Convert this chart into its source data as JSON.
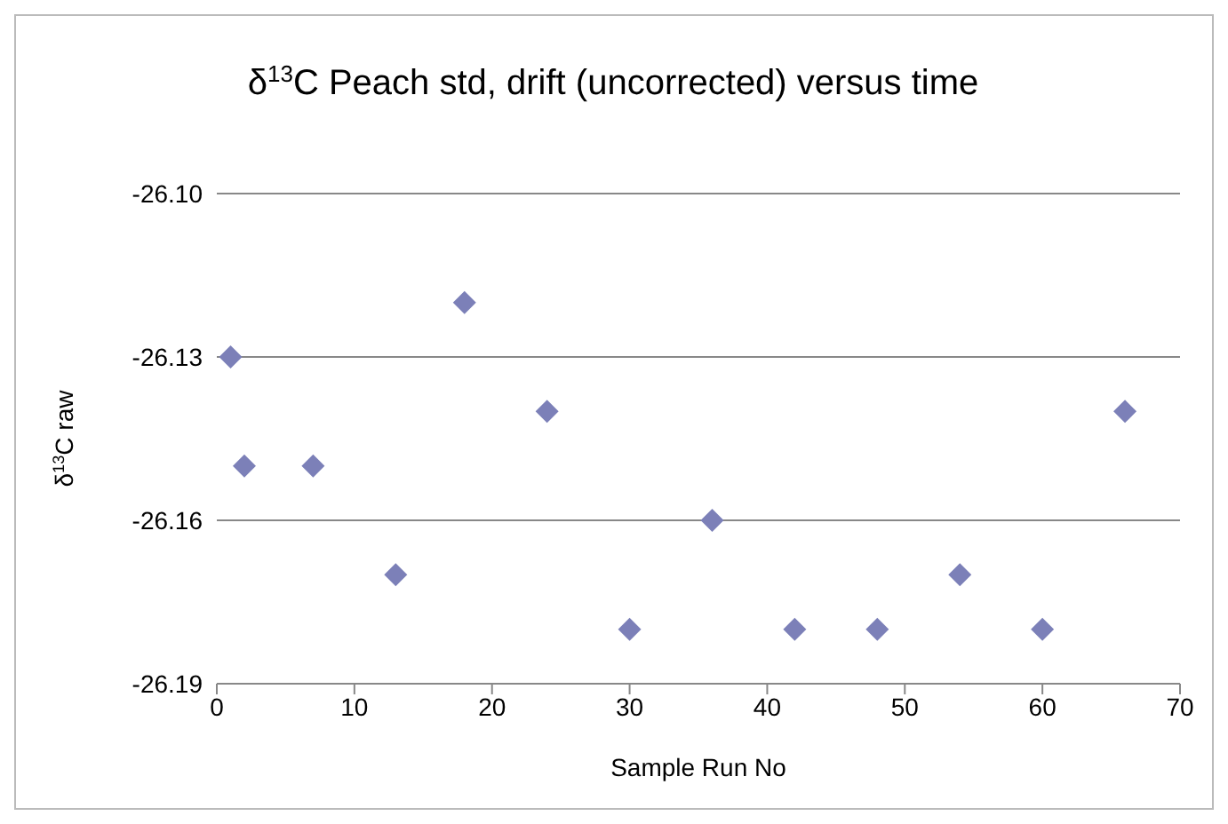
{
  "chart_data": {
    "type": "scatter",
    "title": "δ$^{13}$C Peach std, drift (uncorrected) versus time",
    "xlabel": "Sample Run No",
    "ylabel": "δ$^{13}$C raw",
    "x": [
      1,
      2,
      7,
      13,
      18,
      24,
      30,
      36,
      42,
      48,
      54,
      60,
      66
    ],
    "values": [
      -26.13,
      -26.15,
      -26.15,
      -26.17,
      -26.12,
      -26.14,
      -26.18,
      -26.16,
      -26.18,
      -26.18,
      -26.17,
      -26.18,
      -26.14
    ],
    "color": "#7c80b8",
    "marker": "diamond",
    "grid": "y",
    "xlim": [
      0,
      70
    ],
    "xticks": [
      0,
      10,
      20,
      30,
      40,
      50,
      60,
      70
    ],
    "ylim": [
      -26.19,
      -26.1
    ],
    "yticks": [
      {
        "value": -26.19,
        "label": "-26.19"
      },
      {
        "value": -26.16,
        "label": "-26.16"
      },
      {
        "value": -26.13,
        "label": "-26.13"
      },
      {
        "value": -26.1,
        "label": "-26.10"
      }
    ]
  }
}
